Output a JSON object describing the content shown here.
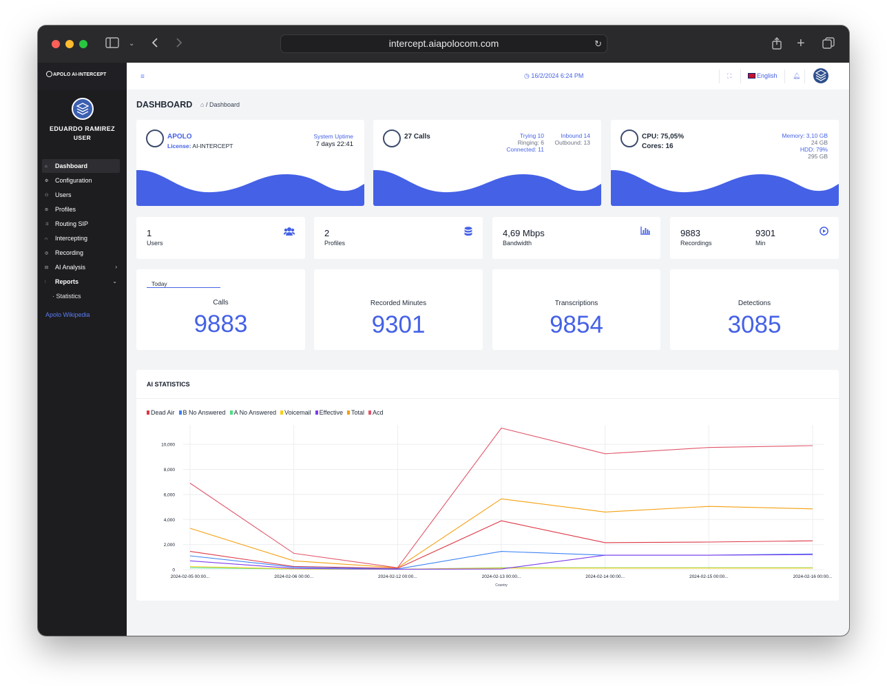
{
  "browser": {
    "url": "intercept.aiapolocom.com"
  },
  "sidebar": {
    "brand": "APOLO AI-INTERCEPT",
    "user_name": "EDUARDO RAMIREZ",
    "user_role": "USER",
    "items": [
      {
        "label": "Dashboard",
        "icon": "home-icon",
        "active": true
      },
      {
        "label": "Configuration",
        "icon": "gear-icon"
      },
      {
        "label": "Users",
        "icon": "users-icon"
      },
      {
        "label": "Profiles",
        "icon": "database-icon"
      },
      {
        "label": "Routing SIP",
        "icon": "shuffle-icon"
      },
      {
        "label": "Intercepting",
        "icon": "headset-icon"
      },
      {
        "label": "Recording",
        "icon": "record-icon"
      },
      {
        "label": "AI Analysis",
        "icon": "inbox-icon",
        "caret": "right"
      },
      {
        "label": "Reports",
        "icon": "bar-chart-icon",
        "caret": "down"
      }
    ],
    "sub_item": "Statistics",
    "wiki_link": "Apolo Wikipedia"
  },
  "topbar": {
    "datetime": "16/2/2024 6:24 PM",
    "language": "English"
  },
  "page": {
    "title": "DASHBOARD",
    "breadcrumb": "Dashboard"
  },
  "cards": {
    "apolo": {
      "name": "APOLO",
      "license_label": "License:",
      "license_value": "AI-INTERCEPT",
      "uptime_label": "System Uptime",
      "uptime_value": "7 days 22:41"
    },
    "calls": {
      "title": "27 Calls",
      "trying": "Trying 10",
      "ringing": "Ringing: 6",
      "connected": "Connected: 11",
      "inbound": "Inbound 14",
      "outbound": "Outbound: 13"
    },
    "system": {
      "cpu": "CPU: 75,05%",
      "cores": "Cores: 16",
      "memory": "Memory: 3,10 GB",
      "memory_total": "24 GB",
      "hdd": "HDD: 79%",
      "hdd_total": "295 GB"
    },
    "accent": "#4561e6"
  },
  "stats": {
    "users": {
      "value": "1",
      "label": "Users"
    },
    "profiles": {
      "value": "2",
      "label": "Profiles"
    },
    "bandwidth": {
      "value": "4,69 Mbps",
      "label": "Bandwidth"
    },
    "recordings": {
      "value": "9883",
      "label": "Recordings",
      "min_value": "9301",
      "min_label": "Min"
    }
  },
  "kpis": {
    "tab": "Today",
    "items": [
      {
        "label": "Calls",
        "value": "9883"
      },
      {
        "label": "Recorded Minutes",
        "value": "9301"
      },
      {
        "label": "Transcriptions",
        "value": "9854"
      },
      {
        "label": "Detections",
        "value": "3085"
      }
    ]
  },
  "ai_statistics": {
    "title": "AI STATISTICS"
  },
  "chart_data": {
    "type": "line",
    "title": "",
    "xlabel": "Country",
    "ylabel": "",
    "ylim": [
      0,
      11000
    ],
    "yticks": [
      "0",
      "2,000",
      "4,000",
      "6,000",
      "8,000",
      "10,000"
    ],
    "ytick_values": [
      0,
      2000,
      4000,
      6000,
      8000,
      10000
    ],
    "x": [
      "2024-02-05 00:00...",
      "2024-02-06 00:00...",
      "2024-02-12 00:00...",
      "2024-02-13 00:00...",
      "2024-02-14 00:00...",
      "2024-02-15 00:00...",
      "2024-02-16 00:00..."
    ],
    "grid": true,
    "legend": "top-left",
    "series": [
      {
        "name": "Dead Air",
        "color": "#dc3545",
        "values": [
          1450,
          250,
          100,
          3900,
          2150,
          2200,
          2300
        ]
      },
      {
        "name": "B No Answered",
        "color": "#3b82f6",
        "values": [
          1100,
          200,
          50,
          1450,
          1150,
          1150,
          1250
        ]
      },
      {
        "name": "A No Answered",
        "color": "#4ade80",
        "values": [
          150,
          50,
          20,
          150,
          150,
          150,
          150
        ]
      },
      {
        "name": "Voicemail",
        "color": "#facc15",
        "values": [
          250,
          60,
          30,
          120,
          120,
          120,
          120
        ]
      },
      {
        "name": "Effective",
        "color": "#7c3aed",
        "values": [
          700,
          100,
          30,
          50,
          1150,
          1150,
          1200
        ]
      },
      {
        "name": "Total",
        "color": "#f59e0b",
        "values": [
          3300,
          700,
          150,
          5650,
          4600,
          5050,
          4850
        ]
      },
      {
        "name": "Acd",
        "color": "#e05569",
        "values": [
          6900,
          1300,
          150,
          11300,
          9250,
          9750,
          9900
        ]
      }
    ]
  }
}
